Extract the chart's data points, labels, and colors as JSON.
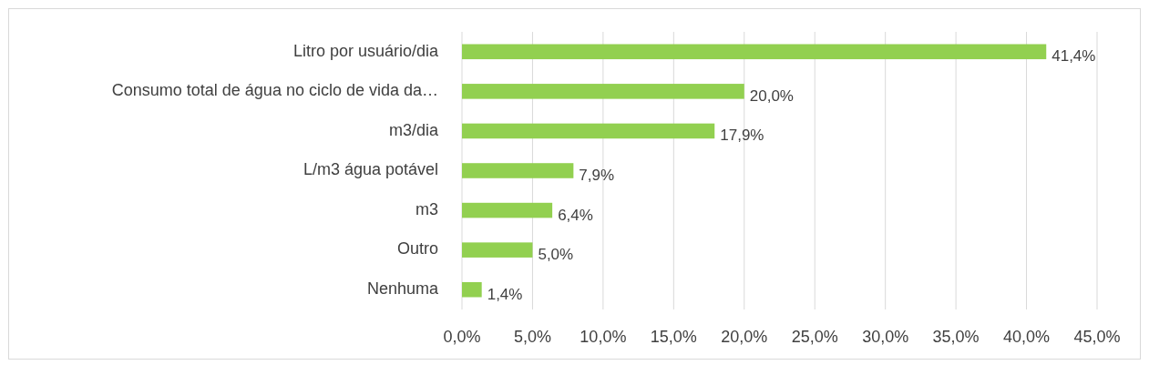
{
  "chart_data": {
    "type": "bar",
    "orientation": "horizontal",
    "categories": [
      "Litro por usuário/dia",
      "Consumo total de água no ciclo de vida da…",
      "m3/dia",
      "L/m3 água potável",
      "m3",
      "Outro",
      "Nenhuma"
    ],
    "values": [
      41.4,
      20.0,
      17.9,
      7.9,
      6.4,
      5.0,
      1.4
    ],
    "value_labels": [
      "41,4%",
      "20,0%",
      "17,9%",
      "7,9%",
      "6,4%",
      "5,0%",
      "1,4%"
    ],
    "color": "#92d050",
    "xlim": [
      0,
      45
    ],
    "xticks": [
      {
        "value": 0,
        "label": "0,0%"
      },
      {
        "value": 5,
        "label": "5,0%"
      },
      {
        "value": 10,
        "label": "10,0%"
      },
      {
        "value": 15,
        "label": "15,0%"
      },
      {
        "value": 20,
        "label": "20,0%"
      },
      {
        "value": 25,
        "label": "25,0%"
      },
      {
        "value": 30,
        "label": "30,0%"
      },
      {
        "value": 35,
        "label": "35,0%"
      },
      {
        "value": 40,
        "label": "40,0%"
      },
      {
        "value": 45,
        "label": "45,0%"
      }
    ],
    "grid": "x"
  }
}
